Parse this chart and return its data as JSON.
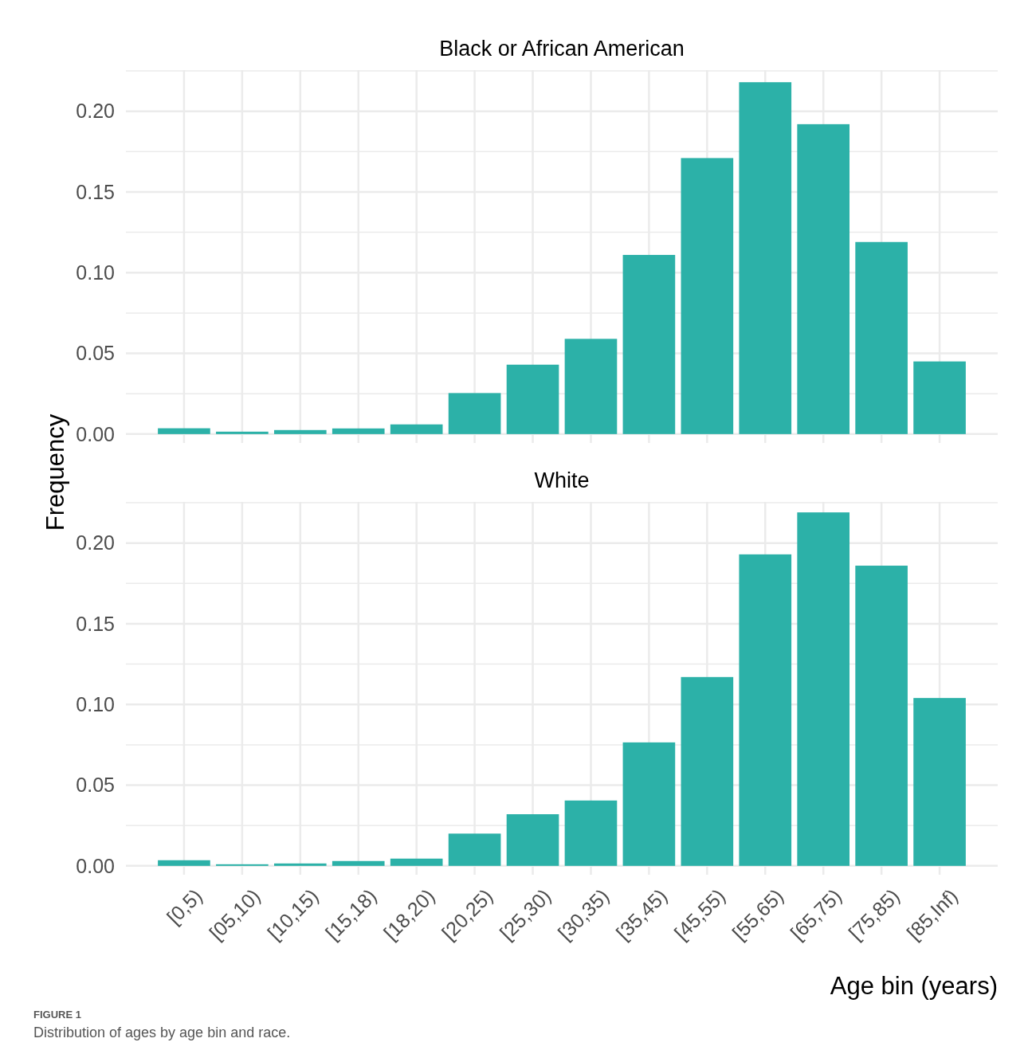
{
  "chart_data": [
    {
      "type": "bar",
      "title": "Black or African American",
      "ylabel": "Frequency",
      "categories": [
        null,
        null,
        null,
        null,
        null,
        null,
        null,
        null,
        null,
        null,
        null,
        null,
        null,
        null
      ],
      "values": [
        0.0036,
        0.0015,
        0.0025,
        0.0035,
        0.006,
        0.0254,
        0.043,
        0.059,
        0.111,
        0.171,
        0.218,
        0.192,
        0.119,
        0.045
      ],
      "color": "#2cb1a8",
      "ylim": [
        -0.0055,
        0.2255
      ],
      "yticks": [
        {
          "value": 0,
          "label": "0.00"
        },
        {
          "value": 0.025,
          "label": null
        },
        {
          "value": 0.05,
          "label": "0.05"
        },
        {
          "value": 0.075,
          "label": null
        },
        {
          "value": 0.1,
          "label": "0.10"
        },
        {
          "value": 0.125,
          "label": null
        },
        {
          "value": 0.15,
          "label": "0.15"
        },
        {
          "value": 0.175,
          "label": null
        },
        {
          "value": 0.2,
          "label": "0.20"
        },
        {
          "value": 0.225,
          "label": null
        }
      ],
      "grid": true,
      "tick_labels": "y"
    },
    {
      "type": "bar",
      "title": "White",
      "xlabel": "Age bin (years)",
      "categories": [
        "[0,5)",
        "[05,10)",
        "[10,15)",
        "[15,18)",
        "[18,20)",
        "[20,25)",
        "[25,30)",
        "[30,35)",
        "[35,45)",
        "[45,55)",
        "[55,65)",
        "[65,75)",
        "[75,85)",
        "[85,Inf)"
      ],
      "values": [
        0.0035,
        0.001,
        0.0015,
        0.003,
        0.0045,
        0.02,
        0.032,
        0.0405,
        0.0765,
        0.117,
        0.193,
        0.219,
        0.186,
        0.104
      ],
      "color": "#2cb1a8",
      "ylim": [
        -0.0055,
        0.2255
      ],
      "yticks": [
        {
          "value": 0,
          "label": "0.00"
        },
        {
          "value": 0.025,
          "label": null
        },
        {
          "value": 0.05,
          "label": "0.05"
        },
        {
          "value": 0.075,
          "label": null
        },
        {
          "value": 0.1,
          "label": "0.10"
        },
        {
          "value": 0.125,
          "label": null
        },
        {
          "value": 0.15,
          "label": "0.15"
        },
        {
          "value": 0.175,
          "label": null
        },
        {
          "value": 0.2,
          "label": "0.20"
        },
        {
          "value": 0.225,
          "label": null
        }
      ],
      "grid": true,
      "annotations": [
        "FIGURE 1",
        "Distribution of ages by age bin and race."
      ]
    }
  ]
}
